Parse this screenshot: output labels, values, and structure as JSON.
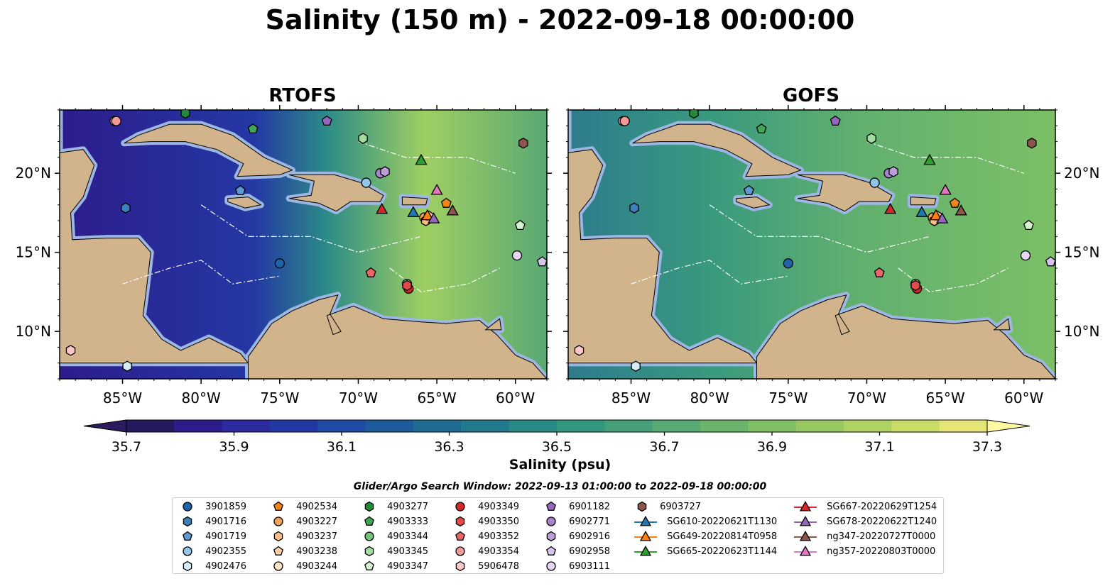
{
  "title": "Salinity (150 m) - 2022-09-18 00:00:00",
  "panels": [
    {
      "title": "RTOFS"
    },
    {
      "title": "GOFS"
    }
  ],
  "colorbar": {
    "label": "Salinity (psu)",
    "ticks": [
      "35.7",
      "35.9",
      "36.1",
      "36.3",
      "36.5",
      "36.7",
      "36.9",
      "37.1",
      "37.3"
    ],
    "colors": [
      "#26185f",
      "#2d1c8c",
      "#2b2a9e",
      "#2438a4",
      "#1f4aa5",
      "#1d5b9d",
      "#1f6b94",
      "#237a8e",
      "#2a8a87",
      "#34977f",
      "#459f79",
      "#58aa73",
      "#6cb46c",
      "#7fbf65",
      "#96c962",
      "#afd362",
      "#c9dc68",
      "#e6e577"
    ],
    "extend_min_color": "#2a1a5e",
    "extend_max_color": "#fdf8a2"
  },
  "search_window": "Glider/Argo Search Window: 2022-09-13 01:00:00 to 2022-09-18 00:00:00",
  "chart_data": {
    "type": "map",
    "xlim": [
      -89,
      -58
    ],
    "ylim": [
      7,
      24
    ],
    "xticks": [
      {
        "value": -85,
        "label": "85°W"
      },
      {
        "value": -80,
        "label": "80°W"
      },
      {
        "value": -75,
        "label": "75°W"
      },
      {
        "value": -70,
        "label": "70°W"
      },
      {
        "value": -65,
        "label": "65°W"
      },
      {
        "value": -60,
        "label": "60°W"
      }
    ],
    "yticks": [
      {
        "value": 10,
        "label": "10°N"
      },
      {
        "value": 15,
        "label": "15°N"
      },
      {
        "value": 20,
        "label": "20°N"
      }
    ],
    "land_color": "#d2b48c",
    "shelf_color": "#9db7e2",
    "argo_floats": [
      {
        "id": "3901859",
        "marker": "circle",
        "color": "#1f63a8",
        "lon": -75.0,
        "lat": 14.3
      },
      {
        "id": "4901716",
        "marker": "hexagon",
        "color": "#3e7fbd",
        "lon": -84.8,
        "lat": 17.8
      },
      {
        "id": "4901719",
        "marker": "pentagon",
        "color": "#5b9bd5",
        "lon": -77.5,
        "lat": 18.9
      },
      {
        "id": "4902355",
        "marker": "circle",
        "color": "#92c5e6",
        "lon": -69.5,
        "lat": 19.4
      },
      {
        "id": "4902476",
        "marker": "hexagon",
        "color": "#d4ecf9",
        "lon": -84.7,
        "lat": 7.8
      },
      {
        "id": "4902534",
        "marker": "pentagon",
        "color": "#f08519",
        "lon": -64.4,
        "lat": 18.1
      },
      {
        "id": "4903227",
        "marker": "circle",
        "color": "#f7a25a",
        "lon": -65.8,
        "lat": 17.2
      },
      {
        "id": "4903237",
        "marker": "hexagon",
        "color": "#fbbd86",
        "lon": -65.7,
        "lat": 17.0
      },
      {
        "id": "4903238",
        "marker": "pentagon",
        "color": "#fcd0a6",
        "lon": -65.5,
        "lat": 17.3
      },
      {
        "id": "4903244",
        "marker": "circle",
        "color": "#fde4c9",
        "lon": -85.5,
        "lat": 23.3
      },
      {
        "id": "4903277",
        "marker": "hexagon",
        "color": "#228b3a",
        "lon": -81.0,
        "lat": 23.8
      },
      {
        "id": "4903333",
        "marker": "pentagon",
        "color": "#42a654",
        "lon": -76.7,
        "lat": 22.8
      },
      {
        "id": "4903344",
        "marker": "circle",
        "color": "#70c478",
        "lon": -66.9,
        "lat": 13.0
      },
      {
        "id": "4903345",
        "marker": "hexagon",
        "color": "#a2dc9f",
        "lon": -69.7,
        "lat": 22.2
      },
      {
        "id": "4903347",
        "marker": "pentagon",
        "color": "#d7f2cf",
        "lon": -59.7,
        "lat": 16.7
      },
      {
        "id": "4903349",
        "marker": "circle",
        "color": "#d62728",
        "lon": -66.8,
        "lat": 12.7
      },
      {
        "id": "4903350",
        "marker": "hexagon",
        "color": "#e34a4a",
        "lon": -66.9,
        "lat": 12.9
      },
      {
        "id": "4903352",
        "marker": "pentagon",
        "color": "#ea6666",
        "lon": -69.2,
        "lat": 13.7
      },
      {
        "id": "4903354",
        "marker": "circle",
        "color": "#f29a9a",
        "lon": -85.4,
        "lat": 23.3
      },
      {
        "id": "5906478",
        "marker": "hexagon",
        "color": "#f9c8c8",
        "lon": -88.3,
        "lat": 8.8
      },
      {
        "id": "6901182",
        "marker": "pentagon",
        "color": "#9467bd",
        "lon": -72.0,
        "lat": 23.3
      },
      {
        "id": "6902771",
        "marker": "circle",
        "color": "#a883cb",
        "lon": -68.6,
        "lat": 20.0
      },
      {
        "id": "6902916",
        "marker": "hexagon",
        "color": "#bc9fd8",
        "lon": -68.3,
        "lat": 20.1
      },
      {
        "id": "6902958",
        "marker": "pentagon",
        "color": "#d7c4ea",
        "lon": -58.3,
        "lat": 14.4
      },
      {
        "id": "6903111",
        "marker": "circle",
        "color": "#e6d6f3",
        "lon": -59.9,
        "lat": 14.8
      },
      {
        "id": "6903727",
        "marker": "hexagon",
        "color": "#8c564b",
        "lon": -59.5,
        "lat": 21.9
      }
    ],
    "gliders": [
      {
        "id": "SG610-20220621T1130",
        "color": "#1f77b4",
        "lon": -66.5,
        "lat": 17.5
      },
      {
        "id": "SG649-20220814T0958",
        "color": "#ff7f0e",
        "lon": -65.6,
        "lat": 17.3
      },
      {
        "id": "SG665-20220623T1144",
        "color": "#2ca02c",
        "lon": -66.0,
        "lat": 20.8
      },
      {
        "id": "SG667-20220629T1254",
        "color": "#d62728",
        "lon": -68.5,
        "lat": 17.7
      },
      {
        "id": "SG678-20220622T1240",
        "color": "#9467bd",
        "lon": -65.2,
        "lat": 17.1
      },
      {
        "id": "ng347-20220727T0000",
        "color": "#8c564b",
        "lon": -64.0,
        "lat": 17.6
      },
      {
        "id": "ng357-20220803T0000",
        "color": "#e377c2",
        "lon": -65.0,
        "lat": 18.9
      }
    ]
  }
}
